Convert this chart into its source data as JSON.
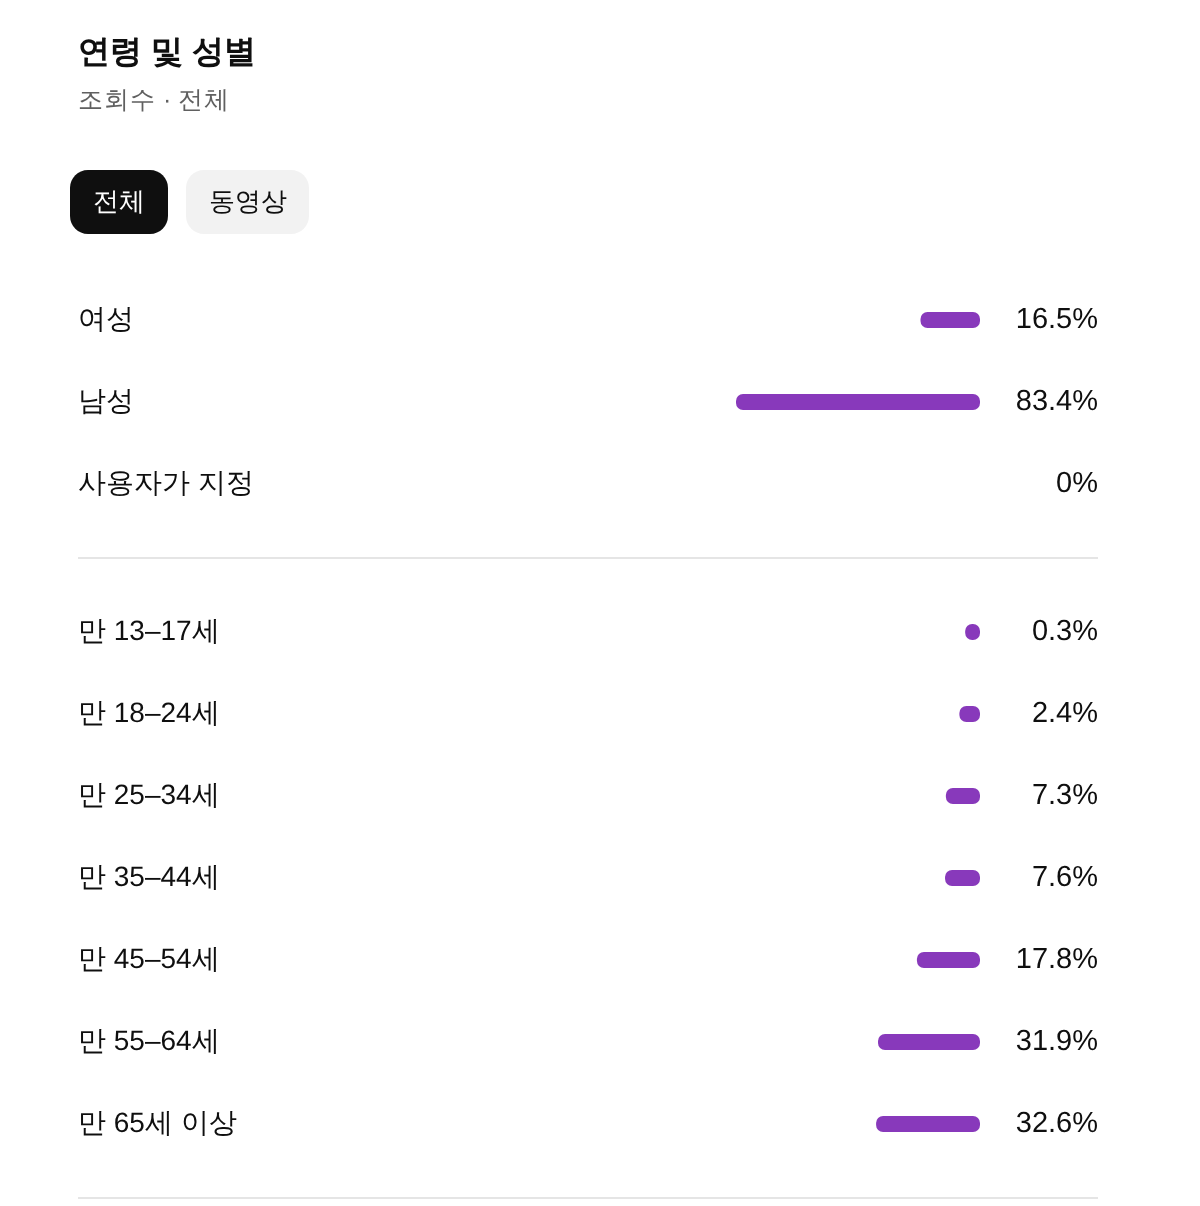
{
  "chart_data": [
    {
      "type": "bar",
      "orientation": "horizontal",
      "title": "연령 및 성별",
      "subtitle": "조회수 · 전체",
      "annotations": [
        "전체",
        "동영상"
      ],
      "categories": [
        "여성",
        "남성",
        "사용자가 지정"
      ],
      "values": [
        16.5,
        83.4,
        0
      ],
      "value_labels": [
        "16.5%",
        "83.4%",
        "0%"
      ],
      "color": "#8839bb",
      "tick_labels": "y"
    },
    {
      "type": "bar",
      "orientation": "horizontal",
      "categories": [
        "만 13–17세",
        "만 18–24세",
        "만 25–34세",
        "만 35–44세",
        "만 45–54세",
        "만 55–64세",
        "만 65세 이상"
      ],
      "values": [
        0.3,
        2.4,
        7.3,
        7.6,
        17.8,
        31.9,
        32.6
      ],
      "value_labels": [
        "0.3%",
        "2.4%",
        "7.3%",
        "7.6%",
        "17.8%",
        "31.9%",
        "32.6%"
      ],
      "color": "#8839bb",
      "tick_labels": "y"
    }
  ]
}
